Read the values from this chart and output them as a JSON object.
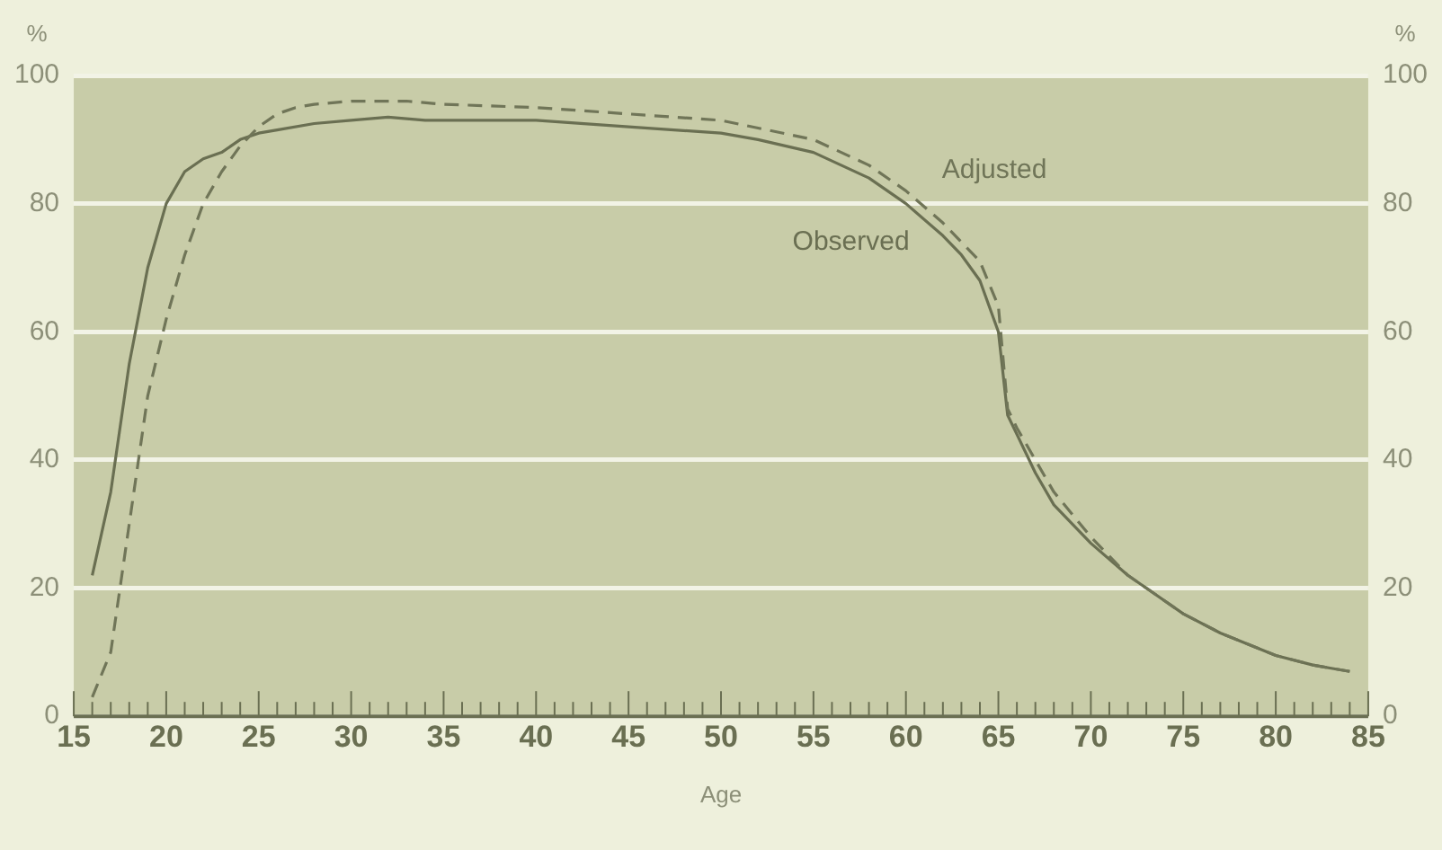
{
  "chart_data": {
    "type": "line",
    "xlabel": "Age",
    "ylabel": "%",
    "y2label": "%",
    "xlim": [
      15,
      85
    ],
    "xticks": [
      15,
      {
        "value": 16,
        "label": null
      },
      {
        "value": 17,
        "label": null
      },
      {
        "value": 18,
        "label": null
      },
      {
        "value": 19,
        "label": null
      },
      20,
      {
        "value": 21,
        "label": null
      },
      {
        "value": 22,
        "label": null
      },
      {
        "value": 23,
        "label": null
      },
      {
        "value": 24,
        "label": null
      },
      25,
      {
        "value": 26,
        "label": null
      },
      {
        "value": 27,
        "label": null
      },
      {
        "value": 28,
        "label": null
      },
      {
        "value": 29,
        "label": null
      },
      30,
      {
        "value": 31,
        "label": null
      },
      {
        "value": 32,
        "label": null
      },
      {
        "value": 33,
        "label": null
      },
      {
        "value": 34,
        "label": null
      },
      35,
      {
        "value": 36,
        "label": null
      },
      {
        "value": 37,
        "label": null
      },
      {
        "value": 38,
        "label": null
      },
      {
        "value": 39,
        "label": null
      },
      40,
      {
        "value": 41,
        "label": null
      },
      {
        "value": 42,
        "label": null
      },
      {
        "value": 43,
        "label": null
      },
      {
        "value": 44,
        "label": null
      },
      45,
      {
        "value": 46,
        "label": null
      },
      {
        "value": 47,
        "label": null
      },
      {
        "value": 48,
        "label": null
      },
      {
        "value": 49,
        "label": null
      },
      50,
      {
        "value": 51,
        "label": null
      },
      {
        "value": 52,
        "label": null
      },
      {
        "value": 53,
        "label": null
      },
      {
        "value": 54,
        "label": null
      },
      55,
      {
        "value": 56,
        "label": null
      },
      {
        "value": 57,
        "label": null
      },
      {
        "value": 58,
        "label": null
      },
      {
        "value": 59,
        "label": null
      },
      60,
      {
        "value": 61,
        "label": null
      },
      {
        "value": 62,
        "label": null
      },
      {
        "value": 63,
        "label": null
      },
      {
        "value": 64,
        "label": null
      },
      65,
      {
        "value": 66,
        "label": null
      },
      {
        "value": 67,
        "label": null
      },
      {
        "value": 68,
        "label": null
      },
      {
        "value": 69,
        "label": null
      },
      70,
      {
        "value": 71,
        "label": null
      },
      {
        "value": 72,
        "label": null
      },
      {
        "value": 73,
        "label": null
      },
      {
        "value": 74,
        "label": null
      },
      75,
      {
        "value": 76,
        "label": null
      },
      {
        "value": 77,
        "label": null
      },
      {
        "value": 78,
        "label": null
      },
      {
        "value": 79,
        "label": null
      },
      80,
      {
        "value": 81,
        "label": null
      },
      {
        "value": 82,
        "label": null
      },
      {
        "value": 83,
        "label": null
      },
      {
        "value": 84,
        "label": null
      },
      85
    ],
    "ylim": [
      0,
      100
    ],
    "yticks": [
      0,
      20,
      40,
      60,
      80,
      100
    ],
    "y2lim": [
      0,
      100
    ],
    "y2ticks": [
      0,
      20,
      40,
      60,
      80,
      100
    ],
    "grid": "y",
    "legend": false,
    "marker": "none",
    "series": [
      {
        "name": "Adjusted",
        "color": "#707558",
        "line_style": "dashed",
        "x": [
          16,
          17,
          18,
          19,
          20,
          21,
          22,
          23,
          24,
          25,
          26,
          27,
          28,
          30,
          33,
          35,
          40,
          45,
          50,
          55,
          58,
          60,
          62,
          64,
          65,
          65.5,
          66,
          67,
          68,
          70,
          72,
          73,
          75,
          77,
          80,
          82,
          83,
          84
        ],
        "values": [
          3,
          10,
          30,
          50,
          62,
          72,
          80,
          85,
          89,
          92,
          94,
          95,
          95.5,
          96,
          96,
          95.5,
          95,
          94,
          93,
          90,
          86,
          82,
          77,
          71,
          64,
          48,
          45,
          40,
          35,
          28,
          22,
          20,
          16,
          13,
          9.5,
          8,
          7.5,
          7
        ]
      },
      {
        "name": "Observed",
        "color": "#6a6f52",
        "line_style": "solid",
        "x": [
          16,
          17,
          18,
          19,
          20,
          21,
          22,
          23,
          24,
          25,
          26,
          28,
          30,
          32,
          34,
          36,
          40,
          45,
          50,
          52,
          55,
          58,
          60,
          62,
          63,
          64,
          65,
          65.5,
          66,
          67,
          68,
          70,
          72,
          73,
          75,
          77,
          80,
          82,
          83,
          84
        ],
        "values": [
          22,
          35,
          55,
          70,
          80,
          85,
          87,
          88,
          90,
          91,
          91.5,
          92.5,
          93,
          93.5,
          93,
          93,
          93,
          92,
          91,
          90,
          88,
          84,
          80,
          75,
          72,
          68,
          60,
          47,
          44,
          38,
          33,
          27,
          22,
          20,
          16,
          13,
          9.5,
          8,
          7.5,
          7
        ]
      }
    ]
  }
}
